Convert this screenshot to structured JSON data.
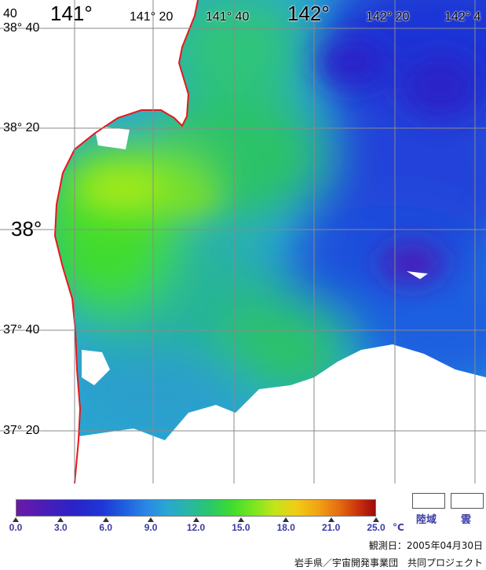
{
  "map": {
    "title": "",
    "lon_labels": [
      {
        "text": "141°",
        "size": "big"
      },
      {
        "text": "141° 20",
        "size": "med"
      },
      {
        "text": "141° 40",
        "size": "med"
      },
      {
        "text": "142°",
        "size": "big"
      },
      {
        "text": "142° 20",
        "size": "med"
      },
      {
        "text": "142° 4",
        "size": "med"
      }
    ],
    "lat_labels": [
      {
        "text": "38° 40",
        "size": "med"
      },
      {
        "text": "38° 20",
        "size": "med"
      },
      {
        "text": "38°",
        "size": "big"
      },
      {
        "text": "37° 40",
        "size": "med"
      },
      {
        "text": "37° 20",
        "size": "med"
      }
    ],
    "top_left_fragment": "40",
    "colors": {
      "land_white": "#ffffff",
      "coastline": "#e8161a",
      "grid": "#8a8a8a",
      "warm_water": "#8ee52a",
      "mid_water": "#2bc267",
      "cool_water": "#2a86e6",
      "cold_water": "#1f36d6",
      "cold_core": "#4a1db8"
    }
  },
  "legend": {
    "ticks": [
      "0.0",
      "3.0",
      "6.0",
      "9.0",
      "12.0",
      "15.0",
      "18.0",
      "21.0",
      "25.0"
    ],
    "unit": "°C",
    "land_label": "陸域",
    "cloud_label": "雲",
    "observation_date": "観測日：2005年04月30日",
    "credit": "岩手県／宇宙開発事業団　共同プロジェクト"
  }
}
